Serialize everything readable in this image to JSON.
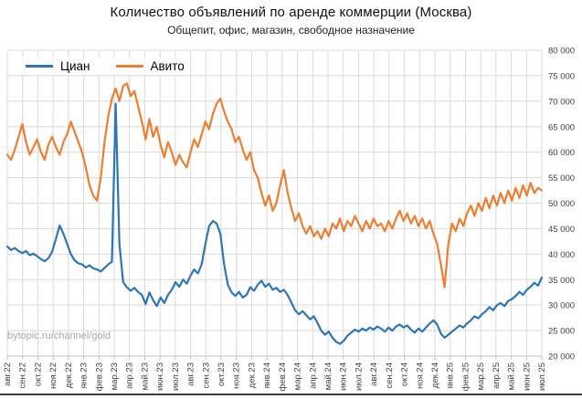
{
  "title": "Количество объявлений по аренде коммерции (Москва)",
  "subtitle": "Общепит, офис, магазин, свободное назначение",
  "watermark": "bytopic.ru/channel/gold",
  "legend": [
    {
      "label": "Циан",
      "color": "#2e75b6"
    },
    {
      "label": "Авито",
      "color": "#ed7d31"
    }
  ],
  "chart_data": {
    "type": "line",
    "title": "Количество объявлений по аренде коммерции (Москва)",
    "subtitle": "Общепит, офис, магазин, свободное назначение",
    "xlabel": "",
    "ylabel": "",
    "ylim": [
      20000,
      80000
    ],
    "ytick_step": 5000,
    "grid": true,
    "legend_position": "top-left",
    "y_axis_side": "right",
    "x_tick_labels": [
      "авг.22",
      "сен.22",
      "окт.22",
      "ноя.22",
      "дек.22",
      "янв.23",
      "фев.23",
      "мар.23",
      "апр.23",
      "май.23",
      "июн.23",
      "июл.23",
      "авг.23",
      "сен.23",
      "окт.23",
      "ноя.23",
      "дек.23",
      "янв.24",
      "фев.24",
      "мар.24",
      "апр.24",
      "май.24",
      "июн.24",
      "июл.24",
      "авг.24",
      "сен.24",
      "окт.24",
      "ноя.24",
      "дек.24",
      "янв.25",
      "фев.25",
      "мар.25",
      "апр.25",
      "май.25",
      "июн.25",
      "июл.25"
    ],
    "series": [
      {
        "name": "Циан",
        "color": "#2e75b6",
        "values": [
          41500,
          40800,
          41200,
          40600,
          40200,
          40600,
          39800,
          40100,
          39600,
          39000,
          38600,
          39200,
          40500,
          43000,
          45600,
          44000,
          42000,
          40000,
          38800,
          38200,
          38000,
          37400,
          37800,
          37200,
          37000,
          36600,
          37300,
          38000,
          38500,
          69500,
          42000,
          34500,
          33500,
          32800,
          33400,
          32600,
          32000,
          30200,
          32500,
          31000,
          29800,
          31500,
          30400,
          32000,
          33000,
          34500,
          33600,
          35000,
          34200,
          35800,
          37000,
          36200,
          38000,
          42000,
          45500,
          46500,
          46000,
          44000,
          38000,
          34000,
          32500,
          31800,
          32600,
          31500,
          32000,
          33500,
          32800,
          34000,
          34800,
          33600,
          34200,
          33000,
          33400,
          32600,
          33000,
          32000,
          30500,
          29000,
          28200,
          28800,
          28000,
          27200,
          27800,
          26500,
          25000,
          24200,
          24800,
          23600,
          22800,
          22400,
          23000,
          24000,
          24600,
          25200,
          24800,
          25400,
          25000,
          25600,
          25200,
          25800,
          25400,
          24800,
          25600,
          25000,
          25800,
          26200,
          25600,
          26000,
          25200,
          24600,
          25400,
          24800,
          25600,
          26400,
          27000,
          26200,
          24400,
          23600,
          24200,
          24800,
          25400,
          26000,
          25600,
          26400,
          27000,
          27800,
          27400,
          28200,
          28800,
          29600,
          29000,
          30000,
          30400,
          29800,
          30800,
          31200,
          31800,
          32600,
          32000,
          33000,
          33600,
          34400,
          33800,
          35400
        ]
      },
      {
        "name": "Авито",
        "color": "#ed7d31",
        "values": [
          59500,
          58500,
          60500,
          63000,
          65500,
          62000,
          59500,
          61000,
          62500,
          60000,
          58500,
          61500,
          63000,
          61000,
          59500,
          62000,
          63500,
          66000,
          64000,
          62000,
          60000,
          57000,
          53500,
          51500,
          50500,
          55000,
          62000,
          67000,
          70500,
          72500,
          70000,
          73000,
          73500,
          71000,
          72000,
          69000,
          66000,
          62500,
          66500,
          63000,
          65000,
          61500,
          59000,
          62000,
          60000,
          57500,
          59500,
          58000,
          57000,
          60000,
          62500,
          61000,
          63500,
          66000,
          64500,
          67500,
          69500,
          70500,
          68000,
          66000,
          64500,
          62000,
          63000,
          60500,
          58500,
          60000,
          56500,
          55000,
          52000,
          49500,
          51500,
          48500,
          50000,
          53500,
          56500,
          52000,
          49000,
          46500,
          48000,
          45500,
          44000,
          45500,
          43500,
          44500,
          43000,
          45000,
          43500,
          46000,
          45000,
          47000,
          44500,
          46500,
          45500,
          47500,
          46000,
          44500,
          46500,
          45000,
          47000,
          45500,
          46000,
          44500,
          46500,
          45000,
          47000,
          48500,
          46500,
          48000,
          46000,
          47500,
          45500,
          47000,
          45000,
          46500,
          44000,
          42000,
          38000,
          33500,
          42000,
          46000,
          44500,
          47000,
          45500,
          48000,
          49500,
          47500,
          50000,
          48500,
          51000,
          49000,
          51500,
          49500,
          52000,
          50000,
          52500,
          50500,
          53000,
          51000,
          53500,
          51500,
          54000,
          52000,
          53000,
          52500
        ]
      }
    ]
  }
}
